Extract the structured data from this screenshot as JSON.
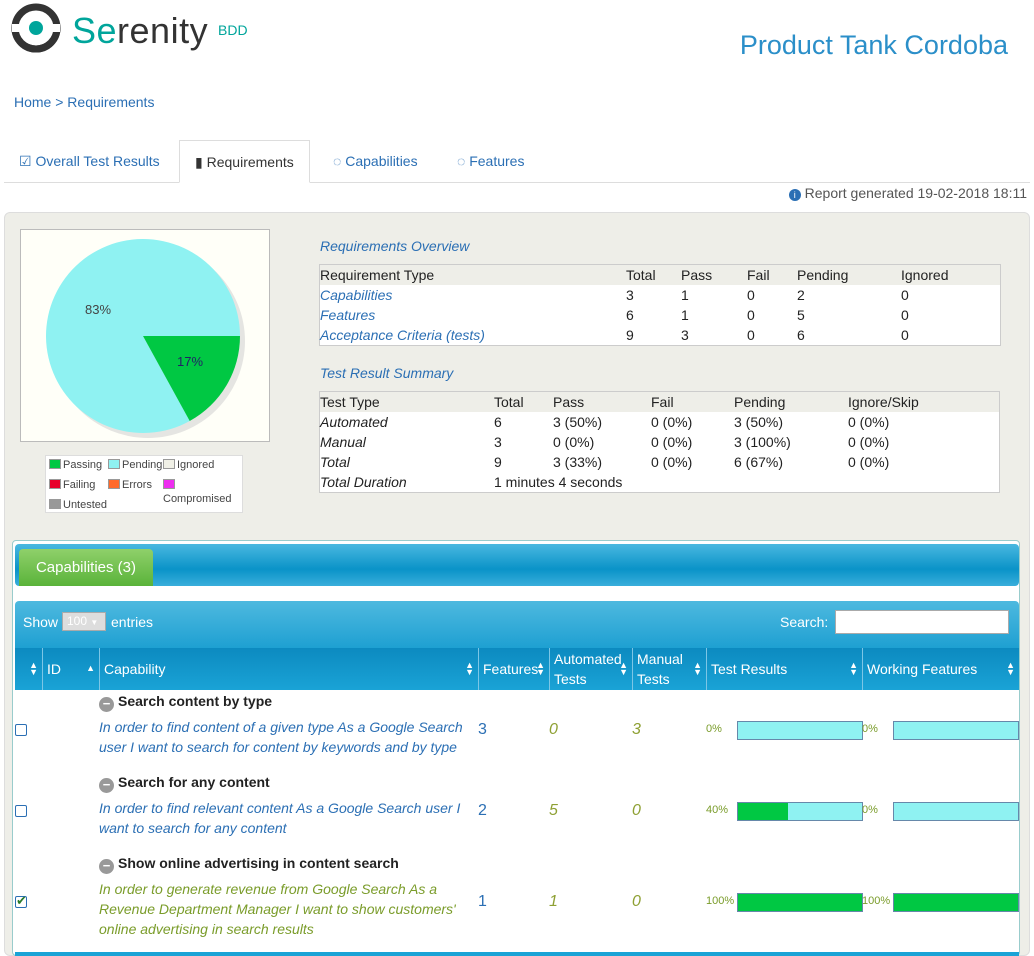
{
  "brand": {
    "name_pre": "Se",
    "name_post": "renity",
    "suffix": "BDD"
  },
  "project_title": "Product Tank Cordoba",
  "breadcrumb": "Home > Requirements",
  "tabs": [
    {
      "label": "Overall Test Results",
      "icon": "check-square-icon"
    },
    {
      "label": "Requirements",
      "icon": "book-icon"
    },
    {
      "label": "Capabilities",
      "icon": "comments-icon"
    },
    {
      "label": "Features",
      "icon": "comments-icon"
    }
  ],
  "report_generated": "Report generated 19-02-2018 18:11",
  "pie": {
    "pending_label": "83%",
    "passing_label": "17%",
    "passing_fraction": 0.17,
    "pending_fraction": 0.83,
    "colors": {
      "passing": "#00c843",
      "pending": "#8ff2f2"
    }
  },
  "legend": [
    "Passing",
    "Pending",
    "Ignored",
    "Failing",
    "Errors",
    "Compromised",
    "Untested"
  ],
  "legend_colors": [
    "#00c843",
    "#8ff2f2",
    "#f0f0e6",
    "#e8002a",
    "#ff6a2b",
    "#ee2df0",
    "#999999"
  ],
  "req_overview": {
    "title": "Requirements Overview",
    "headers": [
      "Requirement Type",
      "Total",
      "Pass",
      "Fail",
      "Pending",
      "Ignored"
    ],
    "rows": [
      [
        "Capabilities",
        "3",
        "1",
        "0",
        "2",
        "0"
      ],
      [
        "Features",
        "6",
        "1",
        "0",
        "5",
        "0"
      ],
      [
        "Acceptance Criteria (tests)",
        "9",
        "3",
        "0",
        "6",
        "0"
      ]
    ]
  },
  "summary": {
    "title": "Test Result Summary",
    "headers": [
      "Test Type",
      "Total",
      "Pass",
      "Fail",
      "Pending",
      "Ignore/Skip"
    ],
    "rows": [
      [
        "Automated",
        "6",
        "3 (50%)",
        "0 (0%)",
        "3 (50%)",
        "0 (0%)"
      ],
      [
        "Manual",
        "3",
        "0 (0%)",
        "0 (0%)",
        "3 (100%)",
        "0 (0%)"
      ],
      [
        "Total",
        "9",
        "3 (33%)",
        "0 (0%)",
        "6 (67%)",
        "0 (0%)"
      ]
    ],
    "duration_label": "Total Duration",
    "duration": "1 minutes 4 seconds"
  },
  "capabilities_tab": "Capabilities (3)",
  "table_controls": {
    "show": "Show",
    "entries_value": "100",
    "entries": "entries",
    "search": "Search:"
  },
  "columns": [
    "ID",
    "Capability",
    "Features",
    "Automated Tests",
    "Manual Tests",
    "Test Results",
    "Working Features"
  ],
  "rows": [
    {
      "title": "Search content by type",
      "desc": "In order to find content of a given type As a Google Search user I want to search for content by keywords and by type",
      "features": "3",
      "automated": "0",
      "manual": "3",
      "result_pct": "0%",
      "result_fill": 0,
      "working_pct": "0%",
      "working_fill": 0,
      "checked": false
    },
    {
      "title": "Search for any content",
      "desc": "In order to find relevant content As a Google Search user I want to search for any content",
      "features": "2",
      "automated": "5",
      "manual": "0",
      "result_pct": "40%",
      "result_fill": 0.4,
      "working_pct": "0%",
      "working_fill": 0,
      "checked": false
    },
    {
      "title": "Show online advertising in content search",
      "desc": "In order to generate revenue from Google Search As a Revenue Department Manager I want to show customers' online advertising in search results",
      "features": "1",
      "automated": "1",
      "manual": "0",
      "result_pct": "100%",
      "result_fill": 1,
      "working_pct": "100%",
      "working_fill": 1,
      "checked": true
    }
  ]
}
